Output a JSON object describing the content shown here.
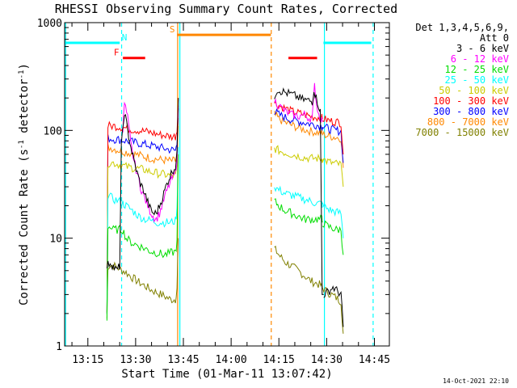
{
  "chart_data": {
    "type": "line",
    "title": "RHESSI Observing Summary Count Rates, Corrected",
    "xlabel": "Start Time (01-Mar-11 13:07:42)",
    "ylabel": "Corrected Count Rate (s⁻¹ detector⁻¹)",
    "ylabel_plain": "Corrected Count Rate (s",
    "ylabel_sup1": "-1",
    "ylabel_mid": " detector",
    "ylabel_sup2": "-1",
    "ylabel_end": ")",
    "yscale": "log",
    "ylim": [
      1,
      1000
    ],
    "xlim_minutes": [
      7.7,
      109.7
    ],
    "x_unit": "minutes after 13:00 UT",
    "yticks": [
      {
        "value": 1,
        "label": "1"
      },
      {
        "value": 10,
        "label": "10"
      },
      {
        "value": 100,
        "label": "100"
      },
      {
        "value": 1000,
        "label": "1000"
      }
    ],
    "xticks": [
      {
        "value": 15,
        "label": "13:15"
      },
      {
        "value": 30,
        "label": "13:30"
      },
      {
        "value": 45,
        "label": "13:45"
      },
      {
        "value": 60,
        "label": "14:00"
      },
      {
        "value": 75,
        "label": "14:15"
      },
      {
        "value": 90,
        "label": "14:30"
      },
      {
        "value": 105,
        "label": "14:45"
      }
    ],
    "legend_placement": "right",
    "legend_header_1": "Det 1,3,4,5,6,9,",
    "legend_header_2": "Att 0",
    "series": [
      {
        "name": "3 - 6 keV",
        "color": "#000000",
        "segments": [
          {
            "x": [
              21,
              22,
              23,
              24,
              25,
              25.5,
              26.5,
              27.5,
              28.5,
              29.5,
              30.5,
              31.5,
              32.5,
              33.5,
              34.5,
              35.5,
              36.5,
              37.5,
              38.5,
              39.5,
              40.5,
              41.5,
              42.5,
              43,
              43.4
            ],
            "y": [
              5.5,
              6,
              5.5,
              5,
              5.5,
              70,
              150,
              100,
              70,
              52,
              40,
              32,
              28,
              23,
              19,
              17,
              17,
              20,
              24,
              30,
              36,
              42,
              46,
              60,
              200
            ]
          },
          {
            "x": [
              73.6,
              74.5,
              76,
              78,
              80,
              82,
              84,
              85.5,
              86,
              86.7,
              87.5,
              88,
              88.6,
              89.1
            ],
            "y": [
              210,
              240,
              230,
              220,
              210,
              195,
              190,
              185,
              240,
              200,
              170,
              150,
              3,
              3
            ]
          },
          {
            "x": [
              89.1,
              90.5,
              92,
              93.5,
              94.5,
              95.2
            ],
            "y": [
              3,
              3.2,
              3.5,
              3.2,
              3,
              1.5
            ]
          }
        ]
      },
      {
        "name": "6 - 12 keV",
        "color": "#ff00ff",
        "segments": [
          {
            "x": [
              26,
              26.5,
              27.5,
              28.5,
              29.5,
              30.5,
              31.5,
              32.5,
              33.5,
              34.5,
              35.5,
              36.5,
              37.5,
              38.5,
              39.5,
              40.5,
              41.5,
              42.5,
              43,
              43.4
            ],
            "y": [
              100,
              180,
              130,
              75,
              52,
              40,
              30,
              25,
              21,
              18,
              16,
              15,
              17,
              21,
              26,
              31,
              36,
              40,
              55,
              170
            ]
          },
          {
            "x": [
              73.6,
              75,
              77,
              79,
              81,
              83,
              84.5,
              85.5,
              86.2,
              86.8,
              87.5,
              88.2,
              88.7
            ],
            "y": [
              190,
              170,
              150,
              140,
              135,
              140,
              130,
              130,
              260,
              180,
              140,
              130,
              120
            ]
          }
        ]
      },
      {
        "name": "12 - 25 keV",
        "color": "#00dd00",
        "segments": [
          {
            "x": [
              21,
              21.3,
              23,
              25,
              26,
              27,
              29,
              31,
              33,
              35,
              37,
              39,
              41,
              42.5,
              43,
              43.4
            ],
            "y": [
              1.8,
              13,
              12,
              12,
              12,
              10,
              9,
              8.5,
              8,
              7.5,
              7.3,
              7,
              7.3,
              7.5,
              9,
              60
            ]
          },
          {
            "x": [
              73.6,
              75,
              77,
              79,
              81,
              83,
              85,
              87,
              88.5,
              88.7
            ],
            "y": [
              22,
              20,
              18,
              17,
              16,
              15,
              15,
              15,
              15,
              14
            ]
          },
          {
            "x": [
              88.7,
              90,
              91.5,
              93,
              94.5,
              95.2
            ],
            "y": [
              14,
              13,
              12.5,
              12,
              12,
              7
            ]
          }
        ]
      },
      {
        "name": "25 - 50 keV",
        "color": "#00ffff",
        "segments": [
          {
            "x": [
              21,
              21.3,
              23,
              25,
              26,
              27,
              29,
              31,
              33,
              35,
              37,
              39,
              41,
              42.5,
              43,
              43.4
            ],
            "y": [
              1.8,
              25,
              23,
              22,
              21,
              20,
              18,
              16,
              15,
              14.5,
              14,
              14,
              14,
              14.5,
              18,
              70
            ]
          },
          {
            "x": [
              73.6,
              75,
              77,
              79,
              81,
              83,
              85,
              87,
              88.5,
              88.7
            ],
            "y": [
              30,
              28,
              26,
              25,
              24,
              23,
              22,
              21,
              21,
              20
            ]
          },
          {
            "x": [
              88.7,
              90,
              91.5,
              93,
              94.5,
              95.2
            ],
            "y": [
              20,
              19,
              18,
              17.5,
              17,
              10
            ]
          }
        ]
      },
      {
        "name": "50 - 100 keV",
        "color": "#cccc00",
        "segments": [
          {
            "x": [
              21,
              21.3,
              23,
              25,
              27,
              29,
              31,
              33,
              35,
              37,
              39,
              41,
              42.5,
              43,
              43.4
            ],
            "y": [
              2,
              50,
              50,
              48,
              46,
              45,
              44,
              43,
              41,
              40,
              39,
              38,
              38,
              45,
              110
            ]
          },
          {
            "x": [
              73.6,
              75,
              77,
              79,
              81,
              83,
              85,
              87,
              88.5,
              88.7
            ],
            "y": [
              68,
              65,
              62,
              60,
              58,
              56,
              55,
              55,
              54,
              54
            ]
          },
          {
            "x": [
              88.7,
              90,
              91.5,
              93,
              94.5,
              95.2
            ],
            "y": [
              54,
              52,
              50,
              49,
              48,
              30
            ]
          }
        ]
      },
      {
        "name": "100 - 300 keV",
        "color": "#ff0000",
        "segments": [
          {
            "x": [
              21,
              21.3,
              23,
              25,
              27,
              29,
              31,
              33,
              35,
              37,
              39,
              41,
              42.5,
              43,
              43.4
            ],
            "y": [
              2,
              110,
              110,
              108,
              105,
              102,
              100,
              98,
              95,
              92,
              90,
              88,
              88,
              100,
              200
            ]
          },
          {
            "x": [
              73.6,
              75,
              77,
              79,
              81,
              83,
              85,
              87,
              88.5,
              88.7
            ],
            "y": [
              180,
              170,
              160,
              150,
              145,
              140,
              135,
              132,
              130,
              128
            ]
          },
          {
            "x": [
              88.7,
              90,
              91.5,
              93,
              94.5,
              95.2
            ],
            "y": [
              128,
              125,
              122,
              120,
              118,
              60
            ]
          }
        ]
      },
      {
        "name": "300 - 800 keV",
        "color": "#0000ff",
        "segments": [
          {
            "x": [
              21,
              21.3,
              23,
              25,
              27,
              29,
              31,
              33,
              35,
              37,
              39,
              41,
              42.5,
              43,
              43.4
            ],
            "y": [
              2,
              85,
              83,
              82,
              80,
              78,
              76,
              74,
              72,
              70,
              68,
              66,
              65,
              75,
              160
            ]
          },
          {
            "x": [
              73.6,
              75,
              77,
              79,
              81,
              83,
              85,
              87,
              88.5,
              88.7
            ],
            "y": [
              150,
              140,
              132,
              126,
              122,
              118,
              115,
              112,
              110,
              108
            ]
          },
          {
            "x": [
              88.7,
              90,
              91.5,
              93,
              94.5,
              95.2
            ],
            "y": [
              108,
              105,
              102,
              100,
              98,
              50
            ]
          }
        ]
      },
      {
        "name": "800 - 7000 keV",
        "color": "#ff8800",
        "segments": [
          {
            "x": [
              21,
              21.3,
              23,
              25,
              27,
              29,
              31,
              33,
              35,
              37,
              39,
              41,
              42.5,
              43,
              43.4
            ],
            "y": [
              2,
              70,
              68,
              65,
              63,
              61,
              59,
              57,
              55,
              54,
              53,
              52,
              52,
              60,
              130
            ]
          },
          {
            "x": [
              73.6,
              75,
              77,
              79,
              81,
              83,
              85,
              87,
              88.5,
              88.7
            ],
            "y": [
              140,
              128,
              118,
              112,
              106,
              102,
              98,
              96,
              94,
              92
            ]
          },
          {
            "x": [
              88.7,
              90,
              91.5,
              93,
              94.5,
              95.2
            ],
            "y": [
              92,
              90,
              88,
              86,
              85,
              45
            ]
          }
        ]
      },
      {
        "name": "7000 - 15000 keV",
        "color": "#808000",
        "segments": [
          {
            "x": [
              21,
              21.3,
              23,
              25,
              27,
              29,
              31,
              33,
              35,
              37,
              39,
              41,
              42.5,
              43,
              43.4
            ],
            "y": [
              1.8,
              5.5,
              5.6,
              5.2,
              4.8,
              4.3,
              3.9,
              3.6,
              3.3,
              3.1,
              2.9,
              2.7,
              2.7,
              3.5,
              10
            ]
          },
          {
            "x": [
              73.6,
              75,
              77,
              79,
              81,
              83,
              85,
              87,
              88.5,
              88.7
            ],
            "y": [
              8,
              7,
              6,
              5.5,
              5,
              4.5,
              4,
              3.8,
              3.6,
              3.5
            ]
          },
          {
            "x": [
              88.7,
              90,
              91.5,
              93,
              94.5,
              95.2
            ],
            "y": [
              3.5,
              3.2,
              3,
              2.8,
              2.6,
              1.3
            ]
          }
        ]
      }
    ],
    "state_bars": [
      {
        "label": "N",
        "color": "#00ffff",
        "level": 650,
        "x0": 7.7,
        "x1": 25,
        "label_x": 26.5
      },
      {
        "label": "",
        "color": "#00ffff",
        "level": 650,
        "x0": 89,
        "x1": 104,
        "label_x": null
      },
      {
        "label": "F",
        "color": "#ff0000",
        "level": 470,
        "x0": 26,
        "x1": 33,
        "label_x": 24
      },
      {
        "label": "",
        "color": "#ff0000",
        "level": 470,
        "x0": 78,
        "x1": 87,
        "label_x": null
      },
      {
        "label": "S",
        "color": "#ff8800",
        "level": 770,
        "x0": 43,
        "x1": 72.5,
        "label_x": 41.5
      }
    ],
    "vertical_lines": [
      {
        "x": 8,
        "color": "#00ffff",
        "style": "solid"
      },
      {
        "x": 25.6,
        "color": "#00ffff",
        "style": "dashed"
      },
      {
        "x": 43.2,
        "color": "#ff8800",
        "style": "solid"
      },
      {
        "x": 43.9,
        "color": "#00ffff",
        "style": "solid"
      },
      {
        "x": 72.6,
        "color": "#ff8800",
        "style": "dashed"
      },
      {
        "x": 89.3,
        "color": "#00ffff",
        "style": "solid"
      },
      {
        "x": 104.6,
        "color": "#00ffff",
        "style": "dashed"
      }
    ],
    "footer_timestamp": "14-Oct-2021 22:10"
  }
}
